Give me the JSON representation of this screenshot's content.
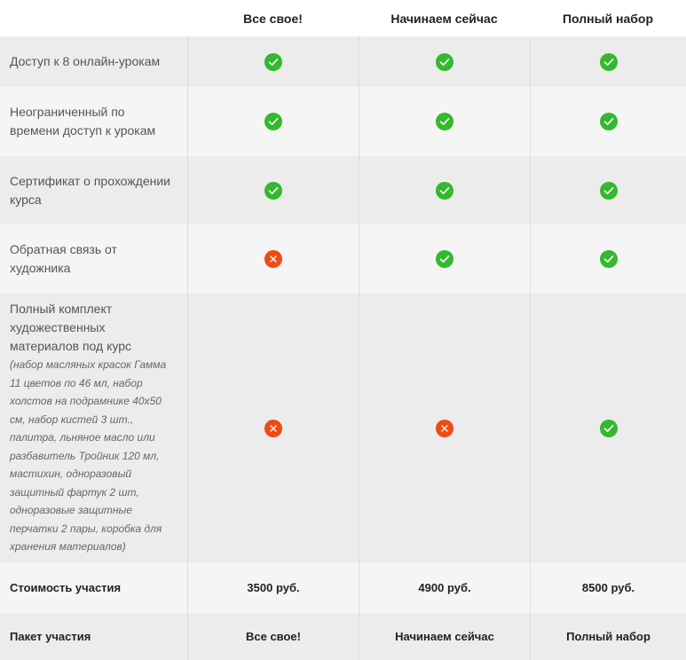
{
  "plans": [
    "Все свое!",
    "Начинаем сейчас",
    "Полный набор"
  ],
  "colors": {
    "yes": "#33b82e",
    "no": "#f04a14"
  },
  "features": [
    {
      "label": "Доступ к 8 онлайн-урокам",
      "note": "",
      "values": [
        "yes",
        "yes",
        "yes"
      ]
    },
    {
      "label": "Неограниченный по времени доступ к урокам",
      "note": "",
      "values": [
        "yes",
        "yes",
        "yes"
      ]
    },
    {
      "label": "Сертификат о прохождении курса",
      "note": "",
      "values": [
        "yes",
        "yes",
        "yes"
      ]
    },
    {
      "label": "Обратная связь от художника",
      "note": "",
      "values": [
        "no",
        "yes",
        "yes"
      ]
    },
    {
      "label": "Полный комплект художественных материалов под курс",
      "note": "(набор масляных красок Гамма 11 цветов по 46 мл, набор холстов на подрамнике 40x50 см, набор кистей 3 шт., палитра, льняное масло или разбавитель Тройник 120 мл, мастихин, одноразовый защитный фартук 2 шт, одноразовые защитные перчатки 2 пары, коробка для хранения материалов)",
      "values": [
        "no",
        "no",
        "yes"
      ]
    }
  ],
  "price_row": {
    "label": "Стоимость участия",
    "values": [
      "3500 руб.",
      "4900 руб.",
      "8500 руб."
    ]
  },
  "package_row": {
    "label": "Пакет участия",
    "values": [
      "Все свое!",
      "Начинаем сейчас",
      "Полный набор"
    ]
  }
}
